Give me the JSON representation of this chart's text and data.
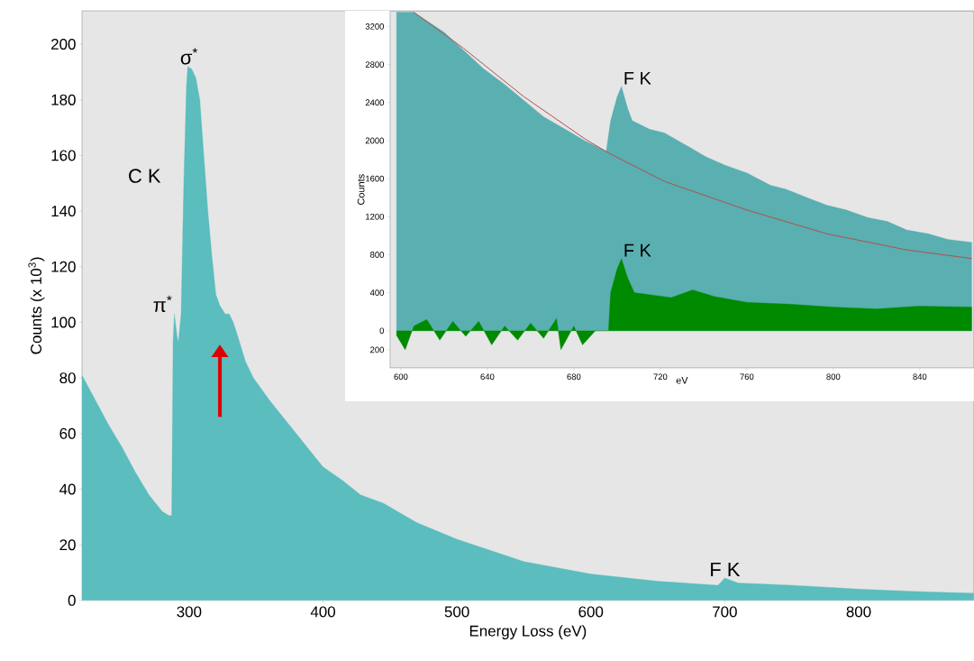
{
  "chart_data": [
    {
      "type": "area",
      "xlabel": "Energy Loss (eV)",
      "ylabel": "Counts (x 10$^{3}$)",
      "xlim": [
        220,
        886
      ],
      "ylim": [
        0,
        212
      ],
      "xticks": [
        300,
        400,
        500,
        600,
        700,
        800
      ],
      "yticks": [
        0,
        20,
        40,
        60,
        80,
        100,
        120,
        140,
        160,
        180,
        200
      ],
      "grid": false,
      "annotations": [
        "C K",
        {
          "text": "π$^{*}$",
          "x": 289,
          "y": 103
        },
        {
          "text": "σ$^{*}$",
          "x": 300,
          "y": 192
        },
        {
          "text": "F K",
          "x": 700,
          "y": 8
        }
      ],
      "series": [
        {
          "color": "#5bbdbd",
          "x": [
            220,
            230,
            240,
            250,
            260,
            270,
            280,
            285,
            287,
            288,
            289,
            291,
            292,
            294,
            296,
            298,
            299,
            302,
            305,
            308,
            311,
            314,
            317,
            320,
            323,
            327,
            330,
            333,
            337,
            342,
            348,
            360,
            380,
            400,
            415,
            428,
            445,
            470,
            500,
            550,
            600,
            650,
            695,
            700,
            710,
            750,
            800,
            850,
            886
          ],
          "values": [
            81,
            72,
            63,
            55,
            46,
            38,
            32,
            30.5,
            30.5,
            93,
            103,
            95,
            93,
            103,
            150,
            185,
            192,
            191,
            188,
            180,
            160,
            140,
            124,
            110,
            106,
            103,
            103,
            100,
            94,
            86,
            80,
            72,
            60,
            48,
            43,
            38,
            35,
            28,
            22,
            14,
            9.5,
            6.9,
            5.5,
            8.1,
            6.3,
            5.5,
            4.1,
            3.1,
            2.6
          ]
        }
      ]
    },
    {
      "type": "area",
      "xlabel": "eV",
      "ylabel": "Counts",
      "xlim": [
        595,
        865
      ],
      "ylim": [
        -390,
        3360
      ],
      "xticks": [
        600,
        640,
        680,
        720,
        760,
        800,
        840
      ],
      "yticks": [
        {
          "value": -200,
          "label": "200"
        },
        0,
        400,
        800,
        1200,
        1600,
        2000,
        2400,
        2800,
        3200
      ],
      "grid": false,
      "annotations": [
        {
          "text": "F K",
          "x": 702,
          "y": 2570
        },
        {
          "text": "F K",
          "x": 702,
          "y": 760
        }
      ],
      "series": [
        {
          "color": "#5aafb1",
          "x": [
            598,
            606,
            620,
            629,
            638,
            648,
            657,
            666,
            676,
            685,
            695,
            697,
            700,
            702,
            705,
            707,
            715,
            722,
            732,
            741,
            750,
            760,
            771,
            778,
            788,
            797,
            806,
            816,
            825,
            834,
            844,
            853,
            864
          ],
          "values": [
            3350,
            3350,
            3140,
            2950,
            2760,
            2590,
            2420,
            2250,
            2120,
            2000,
            1890,
            2210,
            2460,
            2570,
            2330,
            2210,
            2120,
            2080,
            1950,
            1830,
            1740,
            1660,
            1530,
            1490,
            1400,
            1320,
            1270,
            1190,
            1150,
            1060,
            1020,
            960,
            930
          ]
        },
        {
          "type": "line",
          "color": "#b0504c",
          "x": [
            606,
            629,
            657,
            685,
            696,
            722,
            760,
            797,
            834,
            864
          ],
          "values": [
            3350,
            2970,
            2460,
            2020,
            1870,
            1570,
            1270,
            1020,
            850,
            760
          ]
        },
        {
          "color": "#008a00",
          "x": [
            598,
            602,
            606,
            612,
            618,
            624,
            630,
            636,
            642,
            648,
            654,
            660,
            666,
            672,
            674,
            680,
            684,
            690,
            696,
            697,
            700,
            702,
            705,
            708,
            715,
            725,
            735,
            745,
            760,
            780,
            800,
            820,
            840,
            864
          ],
          "values": [
            -50,
            -200,
            50,
            120,
            -100,
            100,
            -60,
            100,
            -150,
            50,
            -100,
            80,
            -80,
            130,
            -200,
            50,
            -150,
            0,
            0,
            400,
            650,
            760,
            550,
            400,
            380,
            350,
            430,
            360,
            300,
            280,
            250,
            230,
            260,
            250
          ]
        }
      ]
    }
  ]
}
